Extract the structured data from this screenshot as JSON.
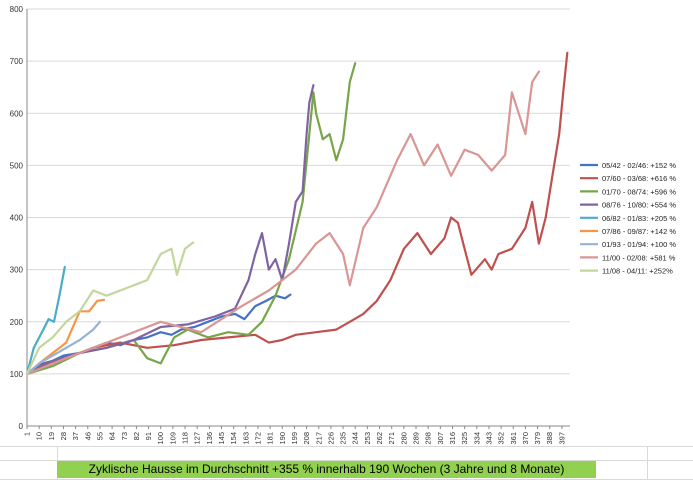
{
  "caption": "Zyklische Hausse im Durchschnitt +355 % innerhalb 190 Wochen (3 Jahre und 8 Monate)",
  "chart_data": {
    "type": "line",
    "title": "",
    "xlabel": "",
    "ylabel": "",
    "ylim": [
      0,
      800
    ],
    "yticks": [
      0,
      100,
      200,
      300,
      400,
      500,
      600,
      700,
      800
    ],
    "xlim": [
      1,
      403
    ],
    "xticks": [
      1,
      10,
      19,
      28,
      37,
      46,
      55,
      64,
      73,
      82,
      91,
      100,
      109,
      118,
      127,
      136,
      145,
      154,
      163,
      172,
      181,
      190,
      199,
      208,
      217,
      226,
      235,
      244,
      253,
      262,
      271,
      280,
      289,
      298,
      307,
      316,
      325,
      334,
      343,
      352,
      361,
      370,
      379,
      388,
      397
    ],
    "grid": "horizontal",
    "legend_position": "right",
    "series": [
      {
        "name": "05/42 - 02/46: +152 %",
        "color": "#4472c4",
        "x": [
          1,
          10,
          20,
          28,
          40,
          50,
          60,
          70,
          80,
          90,
          100,
          108,
          115,
          125,
          135,
          145,
          155,
          162,
          170,
          178,
          185,
          192,
          196
        ],
        "y": [
          100,
          118,
          125,
          135,
          140,
          150,
          160,
          155,
          165,
          170,
          180,
          175,
          185,
          190,
          200,
          210,
          215,
          205,
          230,
          240,
          250,
          245,
          252
        ]
      },
      {
        "name": "07/60 - 03/68: +616 %",
        "color": "#c0504d",
        "x": [
          1,
          15,
          30,
          50,
          70,
          90,
          110,
          130,
          150,
          170,
          180,
          190,
          200,
          215,
          230,
          240,
          250,
          260,
          270,
          280,
          290,
          300,
          310,
          315,
          320,
          325,
          330,
          340,
          345,
          350,
          360,
          370,
          375,
          380,
          385,
          390,
          395,
          398,
          401
        ],
        "y": [
          100,
          120,
          130,
          150,
          160,
          150,
          155,
          165,
          170,
          175,
          160,
          165,
          175,
          180,
          185,
          200,
          215,
          240,
          280,
          340,
          370,
          330,
          360,
          400,
          390,
          340,
          290,
          320,
          300,
          330,
          340,
          380,
          430,
          350,
          400,
          480,
          560,
          640,
          716
        ]
      },
      {
        "name": "01/70 - 08/74: +596 %",
        "color": "#77a54a",
        "x": [
          1,
          20,
          40,
          60,
          80,
          90,
          100,
          110,
          120,
          135,
          150,
          165,
          175,
          185,
          195,
          205,
          210,
          213,
          215,
          220,
          225,
          230,
          235,
          240,
          244
        ],
        "y": [
          100,
          115,
          140,
          150,
          165,
          130,
          120,
          170,
          185,
          170,
          180,
          175,
          200,
          250,
          320,
          430,
          560,
          640,
          600,
          550,
          560,
          510,
          550,
          660,
          696
        ]
      },
      {
        "name": "08/76 - 10/80: +554 %",
        "color": "#8064a2",
        "x": [
          1,
          20,
          40,
          60,
          80,
          100,
          120,
          140,
          155,
          165,
          170,
          175,
          180,
          185,
          190,
          195,
          200,
          205,
          208,
          210,
          213
        ],
        "y": [
          100,
          125,
          140,
          150,
          165,
          190,
          195,
          210,
          225,
          280,
          330,
          370,
          300,
          320,
          280,
          350,
          430,
          450,
          560,
          620,
          654
        ]
      },
      {
        "name": "06/82 - 01/83: +205 %",
        "color": "#4bacc6",
        "x": [
          1,
          6,
          12,
          17,
          21,
          25,
          29
        ],
        "y": [
          100,
          150,
          180,
          205,
          200,
          250,
          305
        ]
      },
      {
        "name": "07/86 - 09/87: +142 %",
        "color": "#f79646",
        "x": [
          1,
          10,
          20,
          30,
          40,
          47,
          53,
          58
        ],
        "y": [
          100,
          120,
          140,
          160,
          220,
          220,
          240,
          242
        ]
      },
      {
        "name": "01/93 - 01/94: +100 %",
        "color": "#95b3d7",
        "x": [
          1,
          10,
          20,
          30,
          40,
          50,
          55
        ],
        "y": [
          100,
          120,
          135,
          150,
          165,
          185,
          200
        ]
      },
      {
        "name": "11/00 - 02/08: +581 %",
        "color": "#d99694",
        "x": [
          1,
          30,
          60,
          100,
          130,
          160,
          180,
          200,
          215,
          225,
          235,
          240,
          250,
          260,
          275,
          285,
          295,
          305,
          315,
          325,
          335,
          345,
          355,
          360,
          365,
          370,
          375,
          380
        ],
        "y": [
          100,
          130,
          160,
          200,
          180,
          230,
          260,
          300,
          350,
          370,
          330,
          270,
          380,
          420,
          510,
          560,
          500,
          540,
          480,
          530,
          520,
          490,
          520,
          640,
          600,
          560,
          660,
          680
        ]
      },
      {
        "name": "11/08 - 04/11: +252%",
        "color": "#c3d69b",
        "x": [
          1,
          10,
          20,
          30,
          40,
          50,
          60,
          70,
          80,
          90,
          100,
          108,
          112,
          118,
          124
        ],
        "y": [
          100,
          150,
          170,
          200,
          220,
          260,
          250,
          260,
          270,
          280,
          330,
          340,
          290,
          340,
          352
        ]
      }
    ]
  }
}
